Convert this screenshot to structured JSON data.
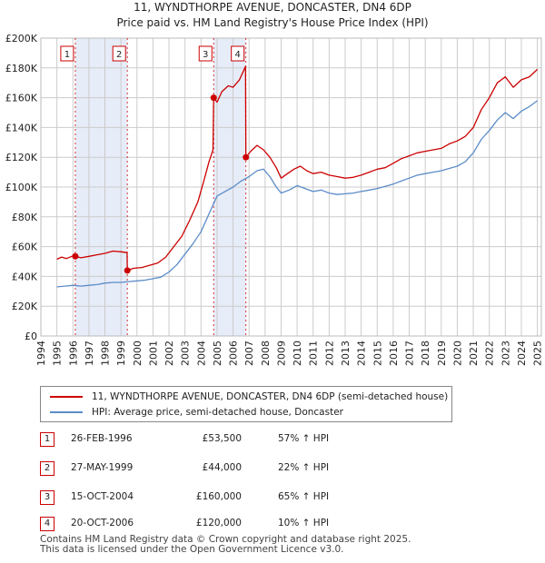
{
  "chart_data": {
    "type": "line",
    "title": "11, WYNDTHORPE AVENUE, DONCASTER, DN4 6DP",
    "subtitle": "Price paid vs. HM Land Registry's House Price Index (HPI)",
    "xlim": [
      1994,
      2025.25
    ],
    "ylim": [
      0,
      200000
    ],
    "x_ticks": [
      1994,
      1995,
      1996,
      1997,
      1998,
      1999,
      2000,
      2001,
      2002,
      2003,
      2004,
      2005,
      2006,
      2007,
      2008,
      2009,
      2010,
      2011,
      2012,
      2013,
      2014,
      2015,
      2016,
      2017,
      2018,
      2019,
      2020,
      2021,
      2022,
      2023,
      2024,
      2025
    ],
    "y_ticks": [
      0,
      20000,
      40000,
      60000,
      80000,
      100000,
      120000,
      140000,
      160000,
      180000,
      200000
    ],
    "y_tick_labels": [
      "£0",
      "£20K",
      "£40K",
      "£60K",
      "£80K",
      "£100K",
      "£120K",
      "£140K",
      "£160K",
      "£180K",
      "£200K"
    ],
    "grid": true,
    "colors": {
      "property": "#cc0000",
      "hpi": "#5b8cc8",
      "shade": "#e6ecf8",
      "grid": "#cccccc"
    },
    "shaded_ranges": [
      [
        1996.15,
        1999.4
      ],
      [
        2004.79,
        2006.8
      ]
    ],
    "series": [
      {
        "name": "11, WYNDTHORPE AVENUE, DONCASTER, DN4 6DP (semi-detached house)",
        "color": "#cc0000",
        "points": [
          [
            1995.0,
            51500
          ],
          [
            1995.3,
            53000
          ],
          [
            1995.6,
            52000
          ],
          [
            1996.0,
            53800
          ],
          [
            1996.15,
            53500
          ],
          [
            1996.5,
            52500
          ],
          [
            1997.0,
            53500
          ],
          [
            1997.5,
            54500
          ],
          [
            1998.0,
            55500
          ],
          [
            1998.5,
            57000
          ],
          [
            1999.0,
            56500
          ],
          [
            1999.38,
            56000
          ],
          [
            1999.4,
            44000
          ],
          [
            1999.8,
            45500
          ],
          [
            2000.3,
            46000
          ],
          [
            2000.8,
            47500
          ],
          [
            2001.3,
            49000
          ],
          [
            2001.8,
            53000
          ],
          [
            2002.3,
            60000
          ],
          [
            2002.8,
            67000
          ],
          [
            2003.3,
            78000
          ],
          [
            2003.8,
            90000
          ],
          [
            2004.2,
            105000
          ],
          [
            2004.5,
            117000
          ],
          [
            2004.75,
            125000
          ],
          [
            2004.79,
            160000
          ],
          [
            2005.0,
            157000
          ],
          [
            2005.3,
            164000
          ],
          [
            2005.7,
            168000
          ],
          [
            2006.0,
            167000
          ],
          [
            2006.4,
            172000
          ],
          [
            2006.78,
            181000
          ],
          [
            2006.8,
            120000
          ],
          [
            2007.1,
            124000
          ],
          [
            2007.5,
            128000
          ],
          [
            2007.9,
            125000
          ],
          [
            2008.3,
            120000
          ],
          [
            2008.7,
            113000
          ],
          [
            2009.0,
            106000
          ],
          [
            2009.4,
            109000
          ],
          [
            2009.8,
            112000
          ],
          [
            2010.2,
            114000
          ],
          [
            2010.6,
            111000
          ],
          [
            2011.0,
            109000
          ],
          [
            2011.5,
            110000
          ],
          [
            2012.0,
            108000
          ],
          [
            2012.5,
            107000
          ],
          [
            2013.0,
            106000
          ],
          [
            2013.5,
            106500
          ],
          [
            2014.0,
            108000
          ],
          [
            2014.5,
            110000
          ],
          [
            2015.0,
            112000
          ],
          [
            2015.5,
            113000
          ],
          [
            2016.0,
            116000
          ],
          [
            2016.5,
            119000
          ],
          [
            2017.0,
            121000
          ],
          [
            2017.5,
            123000
          ],
          [
            2018.0,
            124000
          ],
          [
            2018.5,
            125000
          ],
          [
            2019.0,
            126000
          ],
          [
            2019.5,
            129000
          ],
          [
            2020.0,
            131000
          ],
          [
            2020.5,
            134000
          ],
          [
            2021.0,
            140000
          ],
          [
            2021.5,
            152000
          ],
          [
            2022.0,
            160000
          ],
          [
            2022.5,
            170000
          ],
          [
            2023.0,
            174000
          ],
          [
            2023.5,
            167000
          ],
          [
            2024.0,
            172000
          ],
          [
            2024.5,
            174000
          ],
          [
            2025.0,
            179000
          ]
        ]
      },
      {
        "name": "HPI: Average price, semi-detached house, Doncaster",
        "color": "#5b8cc8",
        "points": [
          [
            1995.0,
            33000
          ],
          [
            1995.5,
            33500
          ],
          [
            1996.0,
            34000
          ],
          [
            1996.5,
            33500
          ],
          [
            1997.0,
            34000
          ],
          [
            1997.5,
            34500
          ],
          [
            1998.0,
            35500
          ],
          [
            1998.5,
            36000
          ],
          [
            1999.0,
            36000
          ],
          [
            1999.5,
            36500
          ],
          [
            2000.0,
            37000
          ],
          [
            2000.5,
            37500
          ],
          [
            2001.0,
            38500
          ],
          [
            2001.5,
            39500
          ],
          [
            2002.0,
            43000
          ],
          [
            2002.5,
            48000
          ],
          [
            2003.0,
            55000
          ],
          [
            2003.5,
            62000
          ],
          [
            2004.0,
            70000
          ],
          [
            2004.5,
            82000
          ],
          [
            2005.0,
            94000
          ],
          [
            2005.5,
            97000
          ],
          [
            2006.0,
            100000
          ],
          [
            2006.5,
            104000
          ],
          [
            2007.0,
            107000
          ],
          [
            2007.5,
            111000
          ],
          [
            2007.9,
            112000
          ],
          [
            2008.3,
            107000
          ],
          [
            2008.7,
            100000
          ],
          [
            2009.0,
            96000
          ],
          [
            2009.5,
            98000
          ],
          [
            2010.0,
            101000
          ],
          [
            2010.5,
            99000
          ],
          [
            2011.0,
            97000
          ],
          [
            2011.5,
            98000
          ],
          [
            2012.0,
            96000
          ],
          [
            2012.5,
            95000
          ],
          [
            2013.0,
            95500
          ],
          [
            2013.5,
            96000
          ],
          [
            2014.0,
            97000
          ],
          [
            2014.5,
            98000
          ],
          [
            2015.0,
            99000
          ],
          [
            2015.5,
            100500
          ],
          [
            2016.0,
            102000
          ],
          [
            2016.5,
            104000
          ],
          [
            2017.0,
            106000
          ],
          [
            2017.5,
            108000
          ],
          [
            2018.0,
            109000
          ],
          [
            2018.5,
            110000
          ],
          [
            2019.0,
            111000
          ],
          [
            2019.5,
            112500
          ],
          [
            2020.0,
            114000
          ],
          [
            2020.5,
            117000
          ],
          [
            2021.0,
            123000
          ],
          [
            2021.5,
            132000
          ],
          [
            2022.0,
            138000
          ],
          [
            2022.5,
            145000
          ],
          [
            2023.0,
            150000
          ],
          [
            2023.5,
            146000
          ],
          [
            2024.0,
            151000
          ],
          [
            2024.5,
            154000
          ],
          [
            2025.0,
            158000
          ]
        ]
      }
    ],
    "sales": [
      {
        "label": "1",
        "x": 1996.15,
        "price": 53500
      },
      {
        "label": "2",
        "x": 1999.4,
        "price": 44000
      },
      {
        "label": "3",
        "x": 2004.79,
        "price": 160000
      },
      {
        "label": "4",
        "x": 2006.8,
        "price": 120000
      }
    ]
  },
  "legend": {
    "property_label": "11, WYNDTHORPE AVENUE, DONCASTER, DN4 6DP (semi-detached house)",
    "hpi_label": "HPI: Average price, semi-detached house, Doncaster"
  },
  "transactions": [
    {
      "num": "1",
      "date": "26-FEB-1996",
      "price": "£53,500",
      "hpi": "57% ↑ HPI"
    },
    {
      "num": "2",
      "date": "27-MAY-1999",
      "price": "£44,000",
      "hpi": "22% ↑ HPI"
    },
    {
      "num": "3",
      "date": "15-OCT-2004",
      "price": "£160,000",
      "hpi": "65% ↑ HPI"
    },
    {
      "num": "4",
      "date": "20-OCT-2006",
      "price": "£120,000",
      "hpi": "10% ↑ HPI"
    }
  ],
  "footer": {
    "line1": "Contains HM Land Registry data © Crown copyright and database right 2025.",
    "line2": "This data is licensed under the Open Government Licence v3.0."
  }
}
